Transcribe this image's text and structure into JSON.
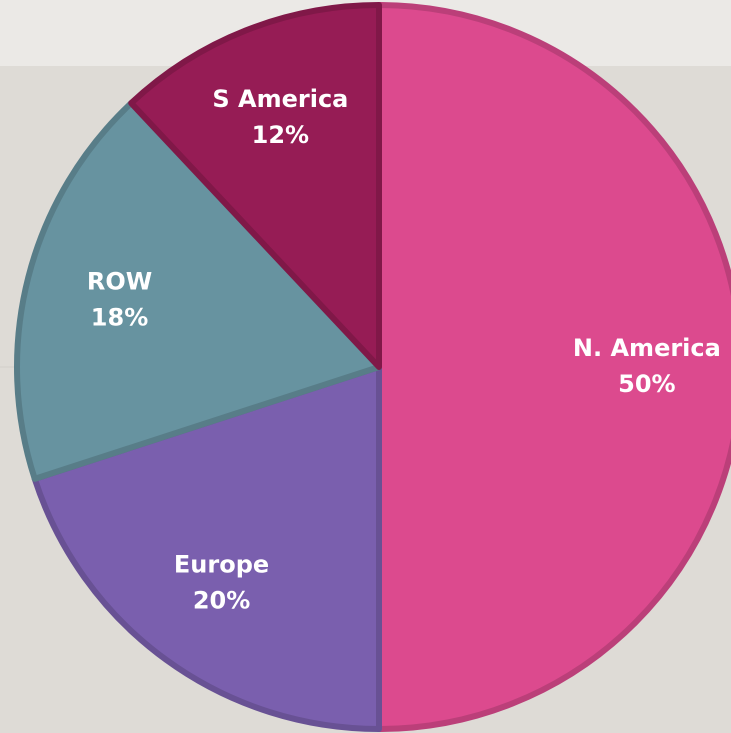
{
  "chart_data": {
    "type": "pie",
    "categories": [
      "N. America",
      "Europe",
      "ROW",
      "S America"
    ],
    "values": [
      50,
      20,
      18,
      12
    ],
    "value_labels": [
      "50%",
      "20%",
      "18%",
      "12%"
    ],
    "colors": [
      "#dc4a8e",
      "#7a5fae",
      "#6793a0",
      "#961c55"
    ],
    "start_angle": 0,
    "direction": "clockwise"
  }
}
